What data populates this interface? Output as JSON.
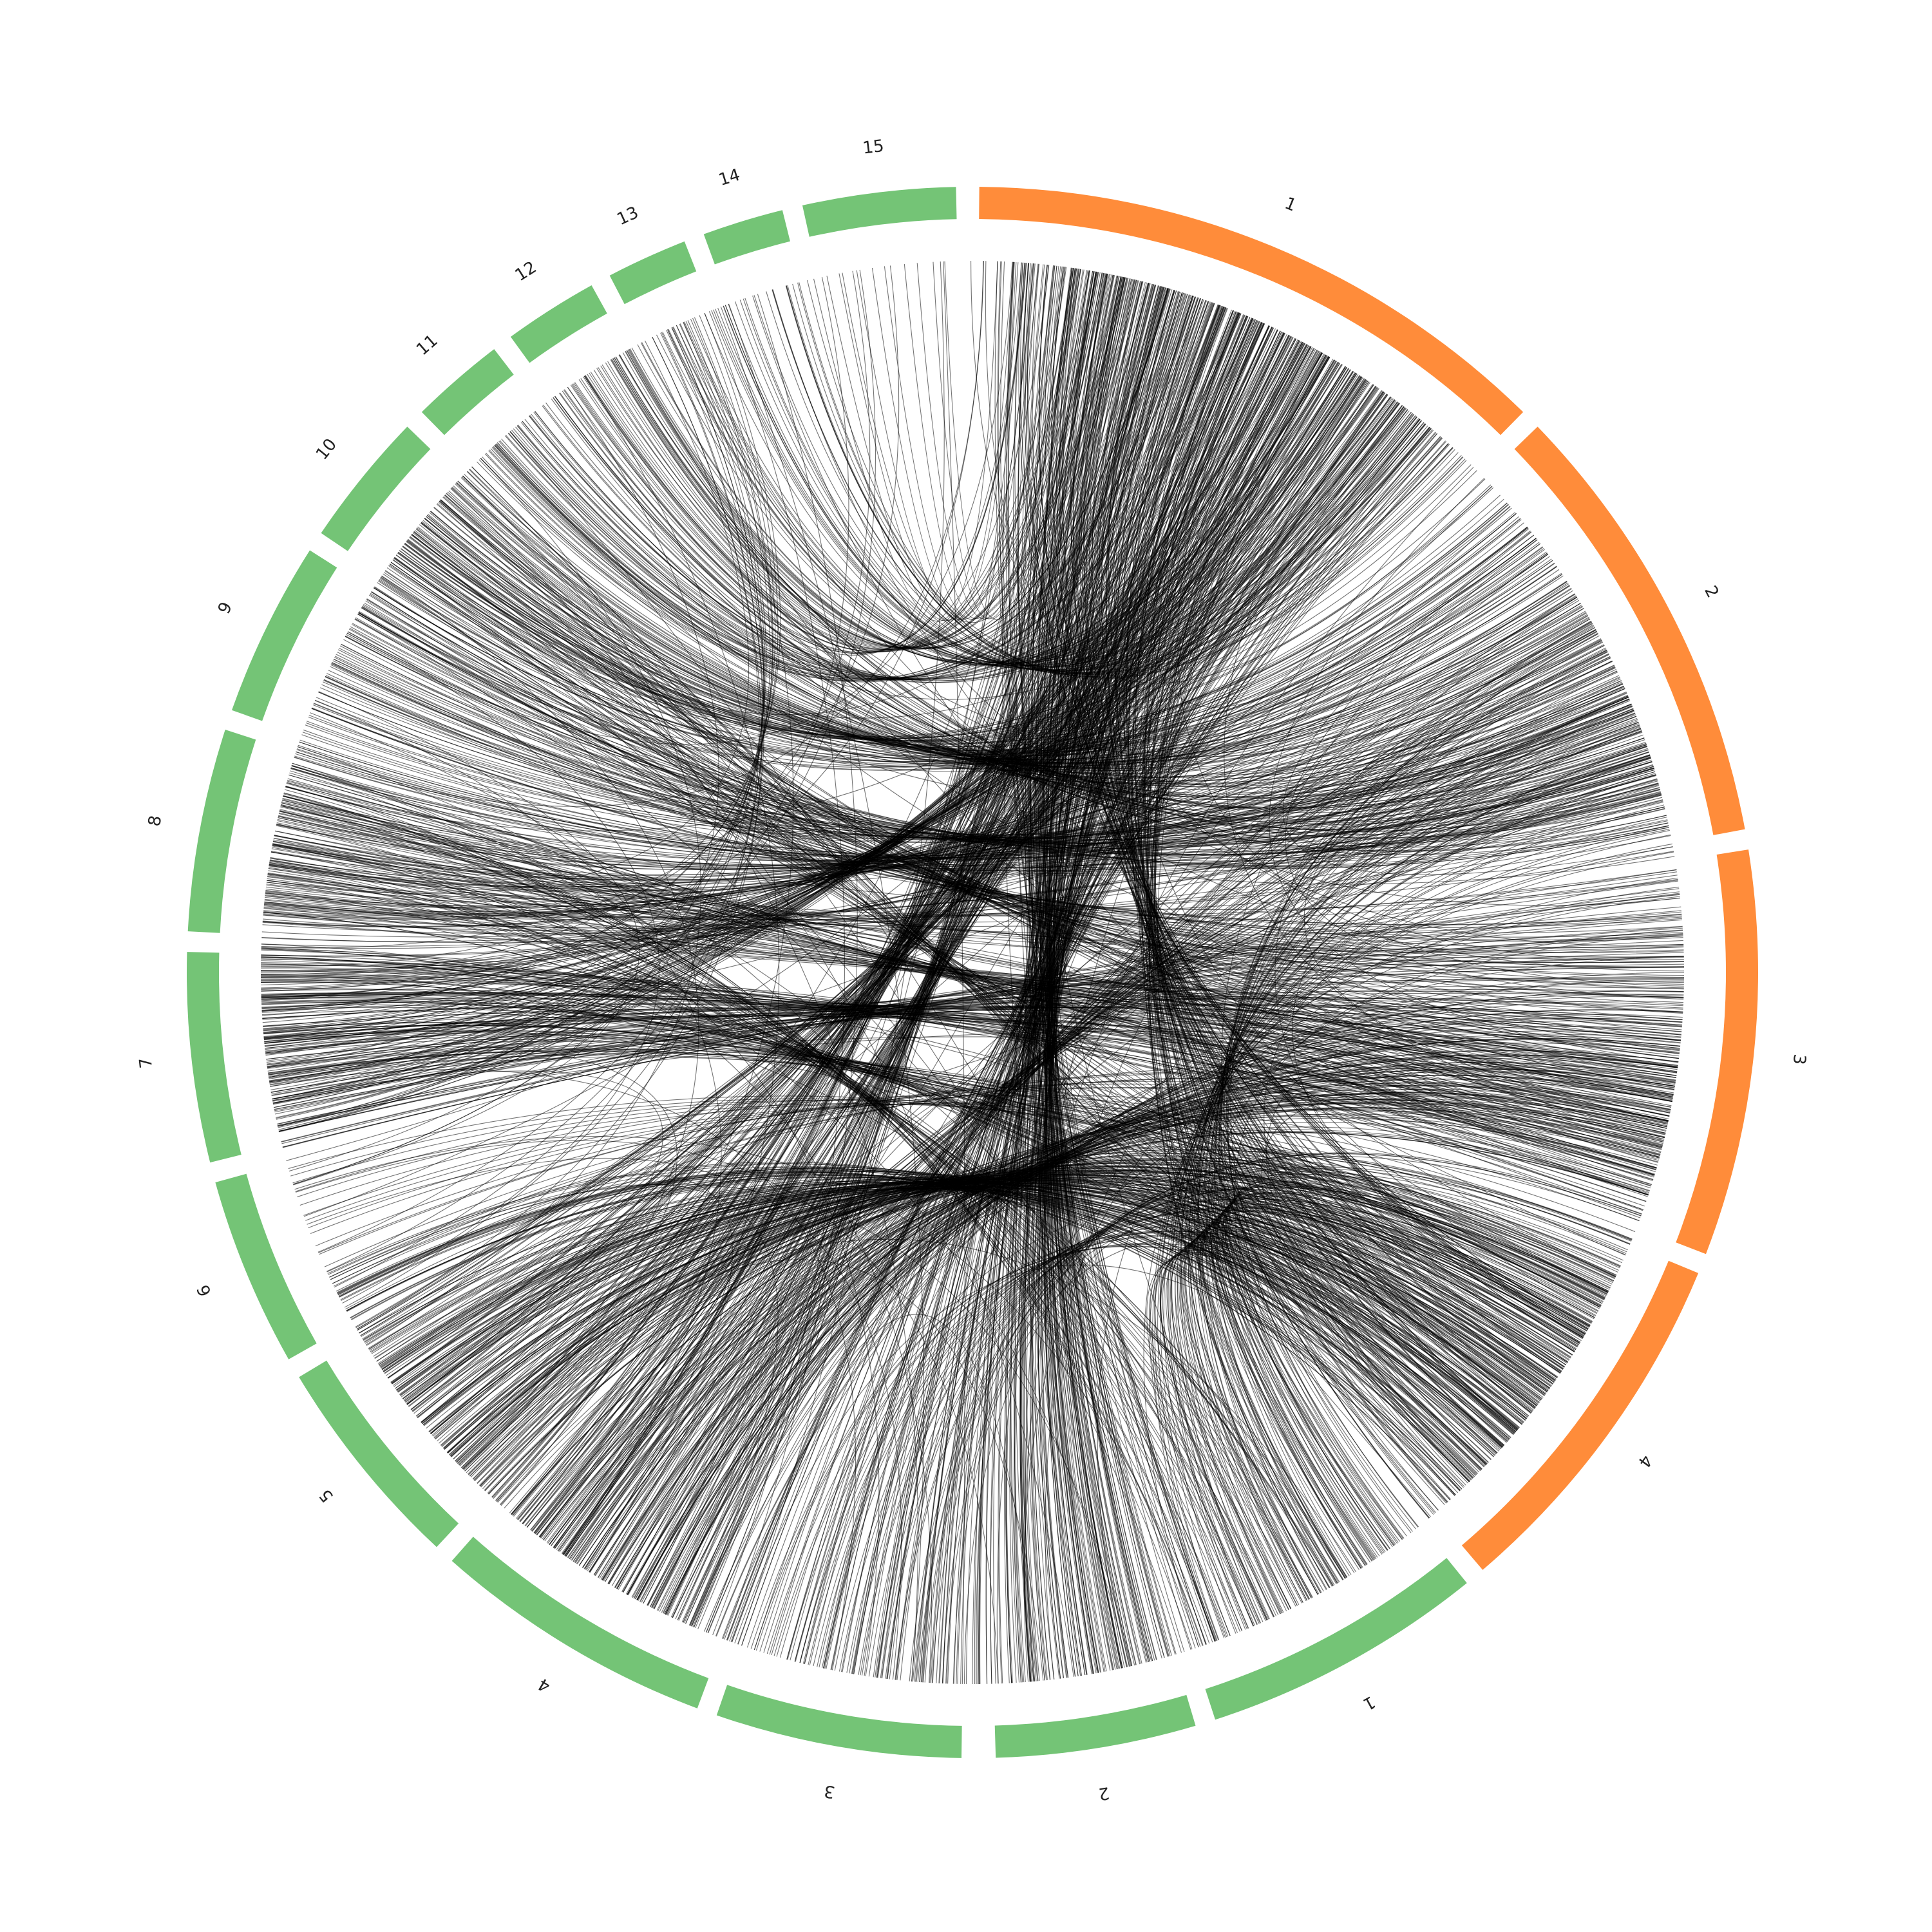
{
  "chart_data": {
    "type": "chord",
    "legend": "none",
    "groups": [
      {
        "name": "orange",
        "color": "#ff8c3a",
        "segments": [
          {
            "label": "1",
            "start": 0.5,
            "end": 44.5
          },
          {
            "label": "2",
            "start": 46.0,
            "end": 79.5
          },
          {
            "label": "3",
            "start": 81.0,
            "end": 111.0
          },
          {
            "label": "4",
            "start": 112.5,
            "end": 139.5
          }
        ]
      },
      {
        "name": "green",
        "color": "#74c476",
        "segments": [
          {
            "label": "1",
            "start": 141.0,
            "end": 162.0
          },
          {
            "label": "2",
            "start": 163.5,
            "end": 178.3
          },
          {
            "label": "3",
            "start": 180.8,
            "end": 199.0
          },
          {
            "label": "4",
            "start": 200.5,
            "end": 221.5
          },
          {
            "label": "5",
            "start": 223.0,
            "end": 239.0
          },
          {
            "label": "6",
            "start": 240.5,
            "end": 254.5
          },
          {
            "label": "7",
            "start": 256.0,
            "end": 271.5
          },
          {
            "label": "8",
            "start": 273.0,
            "end": 288.0
          },
          {
            "label": "9",
            "start": 289.5,
            "end": 302.5
          },
          {
            "label": "10",
            "start": 304.0,
            "end": 314.0
          },
          {
            "label": "11",
            "start": 315.5,
            "end": 322.5
          },
          {
            "label": "12",
            "start": 324.0,
            "end": 331.0
          },
          {
            "label": "13",
            "start": 332.5,
            "end": 338.5
          },
          {
            "label": "14",
            "start": 340.0,
            "end": 346.0
          },
          {
            "label": "15",
            "start": 347.5,
            "end": 358.8
          }
        ]
      }
    ],
    "link_color": "#000000",
    "link_bundles": [
      {
        "a": [
          2,
          42
        ],
        "b": [
          160,
          200
        ],
        "n": 160
      },
      {
        "a": [
          8,
          40
        ],
        "b": [
          215,
          240
        ],
        "n": 110
      },
      {
        "a": [
          4,
          30
        ],
        "b": [
          120,
          150
        ],
        "n": 90
      },
      {
        "a": [
          30,
          44
        ],
        "b": [
          330,
          346
        ],
        "n": 45
      },
      {
        "a": [
          48,
          78
        ],
        "b": [
          300,
          330
        ],
        "n": 90
      },
      {
        "a": [
          50,
          76
        ],
        "b": [
          274,
          290
        ],
        "n": 70
      },
      {
        "a": [
          82,
          110
        ],
        "b": [
          256,
          272
        ],
        "n": 90
      },
      {
        "a": [
          85,
          108
        ],
        "b": [
          292,
          312
        ],
        "n": 60
      },
      {
        "a": [
          90,
          106
        ],
        "b": [
          200,
          222
        ],
        "n": 40
      },
      {
        "a": [
          114,
          138
        ],
        "b": [
          223,
          245
        ],
        "n": 100
      },
      {
        "a": [
          115,
          136
        ],
        "b": [
          260,
          272
        ],
        "n": 45
      },
      {
        "a": [
          116,
          135
        ],
        "b": [
          143,
          158
        ],
        "n": 50
      },
      {
        "a": [
          142,
          160
        ],
        "b": [
          60,
          80
        ],
        "n": 40
      },
      {
        "a": [
          148,
          162
        ],
        "b": [
          275,
          287
        ],
        "n": 30
      },
      {
        "a": [
          164,
          176
        ],
        "b": [
          8,
          25
        ],
        "n": 60
      },
      {
        "a": [
          182,
          198
        ],
        "b": [
          110,
          130
        ],
        "n": 30
      },
      {
        "a": [
          202,
          220
        ],
        "b": [
          10,
          30
        ],
        "n": 70
      },
      {
        "a": [
          203,
          218
        ],
        "b": [
          58,
          75
        ],
        "n": 40
      },
      {
        "a": [
          205,
          218
        ],
        "b": [
          96,
          108
        ],
        "n": 40
      },
      {
        "a": [
          224,
          238
        ],
        "b": [
          112,
          134
        ],
        "n": 50
      },
      {
        "a": [
          242,
          254
        ],
        "b": [
          100,
          118
        ],
        "n": 20
      },
      {
        "a": [
          257,
          270
        ],
        "b": [
          26,
          40
        ],
        "n": 60
      },
      {
        "a": [
          274,
          287
        ],
        "b": [
          94,
          110
        ],
        "n": 45
      },
      {
        "a": [
          290,
          302
        ],
        "b": [
          66,
          78
        ],
        "n": 45
      },
      {
        "a": [
          305,
          313
        ],
        "b": [
          40,
          60
        ],
        "n": 35
      },
      {
        "a": [
          316,
          322
        ],
        "b": [
          18,
          32
        ],
        "n": 25
      },
      {
        "a": [
          324,
          331
        ],
        "b": [
          4,
          18
        ],
        "n": 25
      },
      {
        "a": [
          333,
          338
        ],
        "b": [
          240,
          270
        ],
        "n": 15
      },
      {
        "a": [
          347,
          358
        ],
        "b": [
          2,
          10
        ],
        "n": 10
      },
      {
        "a": [
          270,
          285
        ],
        "b": [
          60,
          100
        ],
        "n": 40
      },
      {
        "a": [
          120,
          140
        ],
        "b": [
          300,
          315
        ],
        "n": 30
      }
    ],
    "sparse_links": 160
  }
}
